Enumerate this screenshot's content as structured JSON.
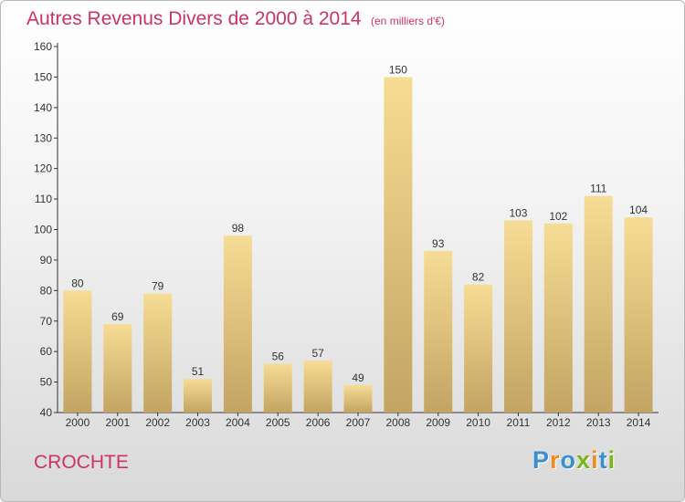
{
  "title": {
    "main": "Autres Revenus Divers de 2000 à 2014",
    "unit": "(en milliers d'€)"
  },
  "commune": "CROCHTE",
  "logo": {
    "text": "Proxiti",
    "colors": [
      "#3a8fd0",
      "#f08a24",
      "#3a8fd0",
      "#7ab51d",
      "#f08a24",
      "#3a8fd0",
      "#7ab51d"
    ]
  },
  "colors": {
    "title": "#cc3366",
    "bar_top": "#f6dc94",
    "bar_bottom": "#c3a463",
    "axis": "#333333"
  },
  "chart_data": {
    "type": "bar",
    "categories": [
      "2000",
      "2001",
      "2002",
      "2003",
      "2004",
      "2005",
      "2006",
      "2007",
      "2008",
      "2009",
      "2010",
      "2011",
      "2012",
      "2013",
      "2014"
    ],
    "values": [
      80,
      69,
      79,
      51,
      98,
      56,
      57,
      49,
      150,
      93,
      82,
      103,
      102,
      111,
      104
    ],
    "ylim": [
      40,
      160
    ],
    "yticks": [
      40,
      50,
      60,
      70,
      80,
      90,
      100,
      110,
      120,
      130,
      140,
      150,
      160
    ],
    "grid": false,
    "legend": "none"
  }
}
